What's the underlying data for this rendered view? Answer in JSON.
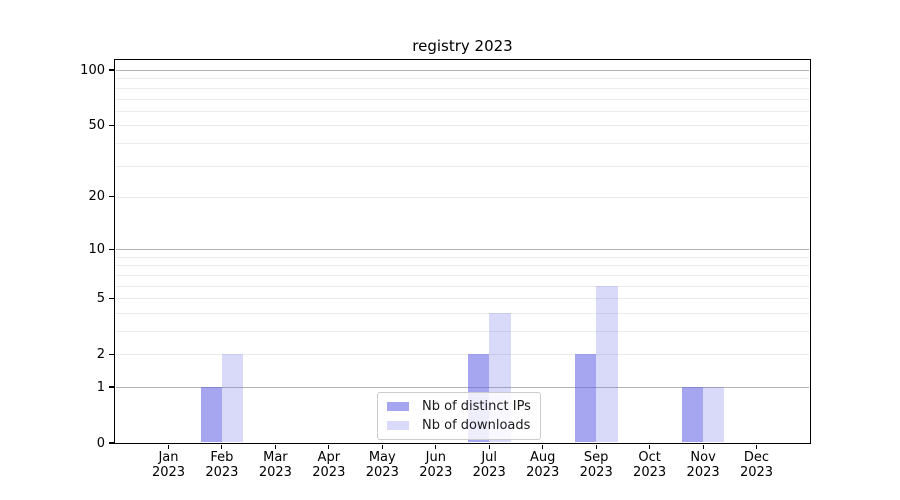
{
  "title": "registry 2023",
  "chart_data": {
    "type": "bar",
    "title": "registry 2023",
    "x_year_label": "2023",
    "months": [
      "Jan",
      "Feb",
      "Mar",
      "Apr",
      "May",
      "Jun",
      "Jul",
      "Aug",
      "Sep",
      "Oct",
      "Nov",
      "Dec"
    ],
    "categories": [
      "Jan 2023",
      "Feb 2023",
      "Mar 2023",
      "Apr 2023",
      "May 2023",
      "Jun 2023",
      "Jul 2023",
      "Aug 2023",
      "Sep 2023",
      "Oct 2023",
      "Nov 2023",
      "Dec 2023"
    ],
    "series": [
      {
        "name": "Nb of distinct IPs",
        "color": "rgba(102,102,230,0.58)",
        "values": [
          0,
          1,
          0,
          0,
          0,
          0,
          2,
          0,
          2,
          0,
          1,
          0
        ]
      },
      {
        "name": "Nb of downloads",
        "color": "rgba(102,102,230,0.25)",
        "values": [
          0,
          2,
          0,
          0,
          0,
          0,
          4,
          0,
          6,
          0,
          1,
          0
        ]
      }
    ],
    "y_axis": {
      "scale": "symlog-log1p",
      "ylim": [
        0,
        100
      ],
      "tick_values": [
        0,
        1,
        2,
        5,
        10,
        20,
        50,
        100
      ],
      "major_gridlines": [
        1,
        10,
        100
      ],
      "minor_gridlines": [
        2,
        3,
        4,
        5,
        6,
        7,
        8,
        9,
        20,
        30,
        40,
        50,
        60,
        70,
        80,
        90
      ]
    },
    "legend": {
      "position": "lower center"
    },
    "grid": true
  },
  "colors": {
    "background": "#ffffff",
    "bar_base": "#6666e6",
    "major_grid": "#b3b3b3",
    "minor_grid": "#ebebeb",
    "axis": "#000000",
    "legend_border": "#cccccc",
    "text": "#000000"
  }
}
